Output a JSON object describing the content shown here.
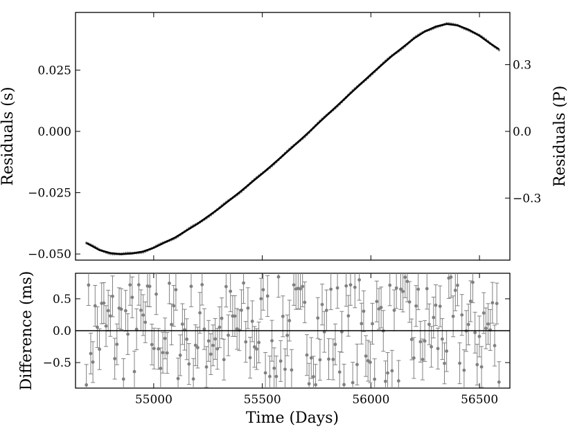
{
  "chart_data": [
    {
      "type": "line",
      "panel": "top",
      "xlim": [
        54640,
        56640
      ],
      "ylim": [
        -0.0525,
        0.0485
      ],
      "yticks": [
        0.025,
        0.0,
        -0.025,
        -0.05
      ],
      "ytick_labels": [
        "0.025",
        "0.000",
        "−0.025",
        "−0.050"
      ],
      "ylabel": "Residuals (s)",
      "right_axis": {
        "label": "Residuals (P)",
        "ticks": [
          0.3,
          0.0,
          -0.3
        ],
        "tick_labels": [
          "0.3",
          "0.0",
          "−0.3"
        ],
        "tick_positions_left_units": [
          0.0272,
          0.0,
          -0.0272
        ]
      },
      "xticks": [
        55000,
        55500,
        56000,
        56500
      ],
      "model": {
        "x": [
          54690,
          54750,
          54800,
          54850,
          54900,
          54950,
          55000,
          55100,
          55200,
          55300,
          55400,
          55500,
          55600,
          55700,
          55800,
          55900,
          56000,
          56100,
          56200,
          56250,
          56300,
          56350,
          56400,
          56450,
          56500,
          56550,
          56590
        ],
        "y": [
          -0.0455,
          -0.0484,
          -0.0496,
          -0.0501,
          -0.0498,
          -0.049,
          -0.0475,
          -0.0432,
          -0.0378,
          -0.0315,
          -0.0245,
          -0.0172,
          -0.0095,
          -0.0015,
          0.0068,
          0.015,
          0.0232,
          0.031,
          0.038,
          0.0408,
          0.0428,
          0.0438,
          0.0432,
          0.0415,
          0.039,
          0.0358,
          0.0335
        ]
      },
      "data_error_s": 0.0006,
      "data_points": 190,
      "colors": {
        "model": "#000000",
        "data": "#808080"
      }
    },
    {
      "type": "scatter",
      "panel": "bottom",
      "xlim": [
        54640,
        56640
      ],
      "ylim": [
        -0.9,
        0.9
      ],
      "yticks": [
        0.5,
        0.0,
        -0.5
      ],
      "ytick_labels": [
        "0.5",
        "0.0",
        "−0.5"
      ],
      "xticks": [
        55000,
        55500,
        56000,
        56500
      ],
      "xtick_labels": [
        "55000",
        "55500",
        "56000",
        "56500"
      ],
      "xlabel": "Time (Days)",
      "ylabel": "Difference (ms)",
      "reference_line_y": 0.0,
      "x_start": 54690,
      "x_end": 56590,
      "num_points": 190,
      "point_error_ms": 0.32,
      "value_range_ms": [
        -0.85,
        0.85
      ],
      "colors": {
        "points": "#808080",
        "errorbars": "#808080",
        "zero_line": "#000000"
      }
    }
  ]
}
